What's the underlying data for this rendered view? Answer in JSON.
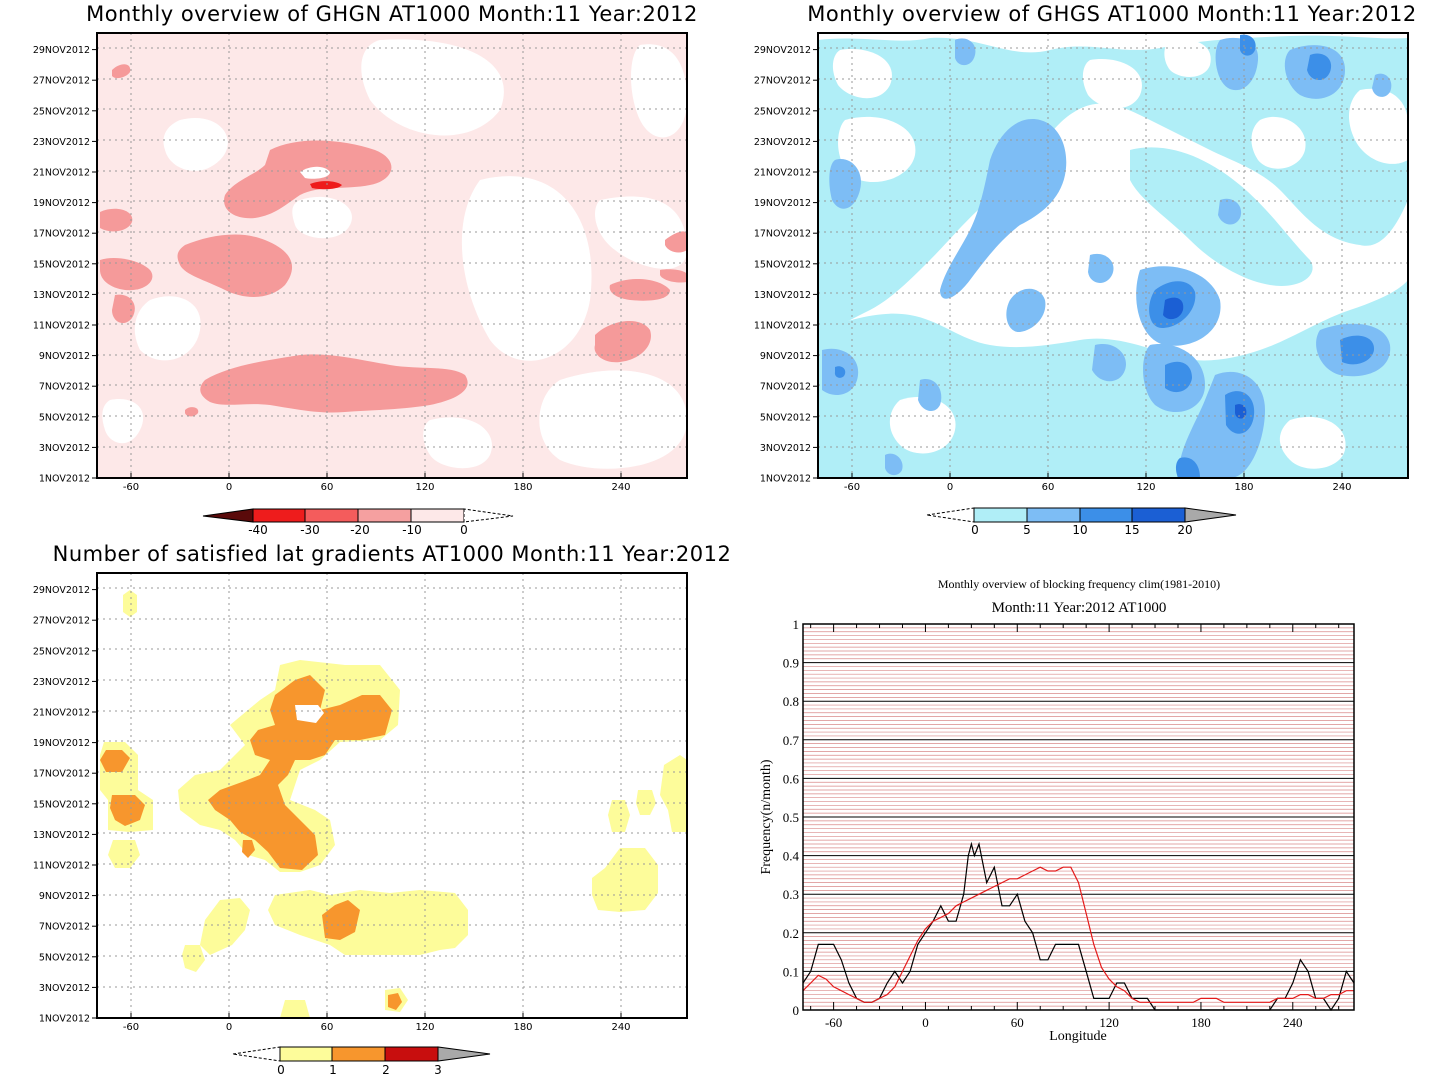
{
  "panels": {
    "ghgn": {
      "title": "Monthly overview of GHGN AT1000 Month:11 Year:2012",
      "colorbar_labels": [
        "-40",
        "-30",
        "-20",
        "-10",
        "0"
      ],
      "colors": [
        "#5a0a0a",
        "#ee1c1c",
        "#f45c5c",
        "#f5a0a0",
        "#fde8e8"
      ]
    },
    "ghgs": {
      "title": "Monthly overview of GHGS AT1000 Month:11 Year:2012",
      "colorbar_labels": [
        "0",
        "5",
        "10",
        "15",
        "20"
      ],
      "colors": [
        "#b0eef7",
        "#7dbdf5",
        "#3c8fe8",
        "#1b5fd4",
        "#a9a9a9"
      ]
    },
    "lat": {
      "title": "Number of satisfied lat gradients AT1000 Month:11 Year:2012",
      "colorbar_labels": [
        "0",
        "1",
        "2",
        "3"
      ],
      "colors": [
        "#fdfc9a",
        "#f7962d",
        "#c80e0e",
        "#a9a9a9"
      ]
    },
    "freq": {
      "title": "Monthly overview of blocking frequency clim(1981-2010)",
      "subtitle": "Month:11 Year:2012  AT1000"
    }
  },
  "map_axes": {
    "x_ticks": [
      "-60",
      "0",
      "60",
      "120",
      "180",
      "240"
    ],
    "y_ticks": [
      "1NOV2012",
      "3NOV2012",
      "5NOV2012",
      "7NOV2012",
      "9NOV2012",
      "11NOV2012",
      "13NOV2012",
      "15NOV2012",
      "17NOV2012",
      "19NOV2012",
      "21NOV2012",
      "23NOV2012",
      "25NOV2012",
      "27NOV2012",
      "29NOV2012"
    ]
  },
  "chart_data": [
    {
      "type": "line",
      "title": "Monthly overview of blocking frequency clim(1981-2010)",
      "subtitle": "Month:11 Year:2012  AT1000",
      "xlabel": "Longitude",
      "ylabel": "Frequency(n/month)",
      "xlim": [
        -80,
        280
      ],
      "ylim": [
        0,
        1
      ],
      "x_ticks": [
        "-60",
        "0",
        "60",
        "120",
        "180",
        "240"
      ],
      "y_ticks": [
        "0",
        "0.1",
        "0.2",
        "0.3",
        "0.4",
        "0.5",
        "0.6",
        "0.7",
        "0.8",
        "0.9",
        "1"
      ],
      "grid": true,
      "series": [
        {
          "color": "#000000",
          "x": [
            -80,
            -75,
            -70,
            -65,
            -60,
            -55,
            -50,
            -45,
            -40,
            -35,
            -30,
            -25,
            -20,
            -15,
            -10,
            -5,
            0,
            5,
            10,
            15,
            20,
            25,
            28,
            30,
            32,
            35,
            40,
            45,
            50,
            55,
            60,
            65,
            70,
            75,
            80,
            85,
            90,
            95,
            100,
            105,
            110,
            115,
            120,
            125,
            130,
            135,
            140,
            145,
            150,
            155,
            160,
            165,
            170,
            175,
            180,
            185,
            190,
            195,
            200,
            205,
            210,
            215,
            220,
            225,
            230,
            235,
            240,
            245,
            250,
            255,
            260,
            265,
            270,
            275,
            280
          ],
          "y": [
            0.07,
            0.1,
            0.17,
            0.17,
            0.17,
            0.13,
            0.07,
            0.03,
            0.02,
            0.02,
            0.03,
            0.07,
            0.1,
            0.07,
            0.1,
            0.17,
            0.2,
            0.23,
            0.27,
            0.23,
            0.23,
            0.3,
            0.4,
            0.43,
            0.4,
            0.43,
            0.33,
            0.37,
            0.27,
            0.27,
            0.3,
            0.23,
            0.2,
            0.13,
            0.13,
            0.17,
            0.17,
            0.17,
            0.17,
            0.1,
            0.03,
            0.03,
            0.03,
            0.07,
            0.07,
            0.03,
            0.03,
            0.03,
            0.0,
            0.0,
            0.0,
            0.0,
            0.0,
            0.0,
            0.0,
            0.0,
            0.0,
            0.0,
            0.0,
            0.0,
            0.0,
            0.0,
            0.0,
            0.0,
            0.03,
            0.03,
            0.07,
            0.13,
            0.1,
            0.03,
            0.03,
            0.0,
            0.03,
            0.1,
            0.07
          ]
        },
        {
          "color": "#e41a1a",
          "x": [
            -80,
            -75,
            -70,
            -65,
            -60,
            -55,
            -50,
            -45,
            -40,
            -35,
            -30,
            -25,
            -20,
            -15,
            -10,
            -5,
            0,
            5,
            10,
            15,
            20,
            25,
            30,
            35,
            40,
            45,
            50,
            55,
            60,
            65,
            70,
            75,
            80,
            85,
            90,
            95,
            100,
            105,
            110,
            115,
            120,
            125,
            130,
            135,
            140,
            145,
            150,
            155,
            160,
            165,
            170,
            175,
            180,
            185,
            190,
            195,
            200,
            205,
            210,
            215,
            220,
            225,
            230,
            235,
            240,
            245,
            250,
            255,
            260,
            265,
            270,
            275,
            280
          ],
          "y": [
            0.05,
            0.07,
            0.09,
            0.08,
            0.06,
            0.05,
            0.04,
            0.03,
            0.02,
            0.02,
            0.03,
            0.04,
            0.06,
            0.1,
            0.14,
            0.18,
            0.21,
            0.23,
            0.24,
            0.25,
            0.27,
            0.28,
            0.29,
            0.3,
            0.31,
            0.32,
            0.33,
            0.34,
            0.34,
            0.35,
            0.36,
            0.37,
            0.36,
            0.36,
            0.37,
            0.37,
            0.33,
            0.25,
            0.17,
            0.11,
            0.08,
            0.06,
            0.05,
            0.03,
            0.02,
            0.02,
            0.02,
            0.02,
            0.02,
            0.02,
            0.02,
            0.02,
            0.03,
            0.03,
            0.03,
            0.02,
            0.02,
            0.02,
            0.02,
            0.02,
            0.02,
            0.02,
            0.03,
            0.03,
            0.03,
            0.04,
            0.04,
            0.03,
            0.03,
            0.04,
            0.04,
            0.05,
            0.05
          ]
        }
      ]
    }
  ]
}
